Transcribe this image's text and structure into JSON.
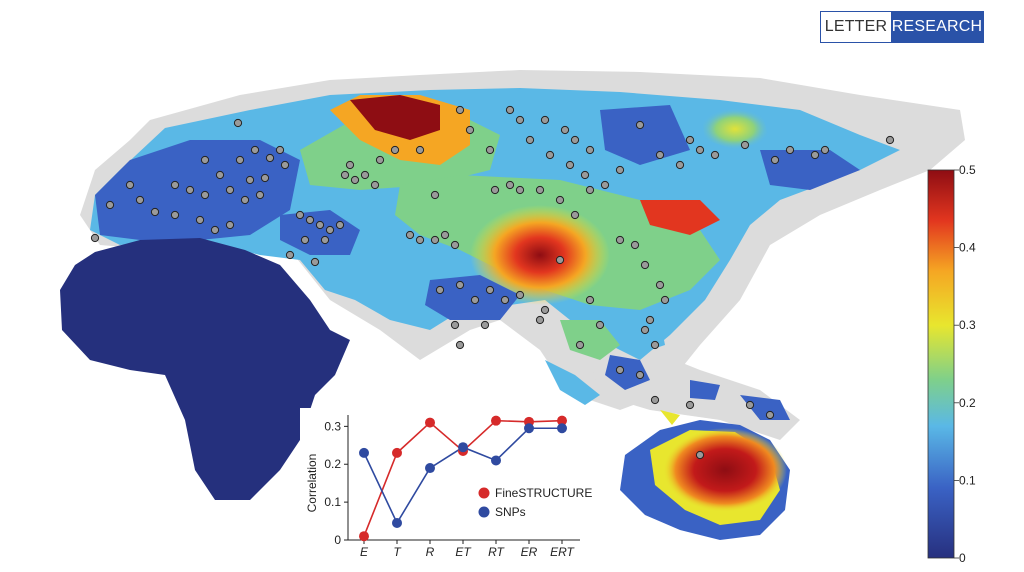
{
  "header": {
    "tag_left": "LETTER",
    "tag_right": "RESEARCH"
  },
  "colors": {
    "africa": "#25307d",
    "finestructure": "#d62a2a",
    "snps": "#2f4aa0",
    "scale_stops": [
      "#27307f",
      "#3a62c4",
      "#5ab8e6",
      "#7fd08a",
      "#e8e62e",
      "#f5a623",
      "#e2361f",
      "#8e0d13"
    ]
  },
  "colorbar": {
    "ticks": [
      "0.5",
      "0.4",
      "0.3",
      "0.2",
      "0.1",
      "0"
    ],
    "min": 0,
    "max": 0.5
  },
  "chart_data": {
    "type": "line",
    "categories": [
      "E",
      "T",
      "R",
      "ET",
      "RT",
      "ER",
      "ERT"
    ],
    "series": [
      {
        "name": "FineSTRUCTURE",
        "values": [
          0.01,
          0.23,
          0.31,
          0.235,
          0.315,
          0.312,
          0.315
        ]
      },
      {
        "name": "SNPs",
        "values": [
          0.23,
          0.045,
          0.19,
          0.245,
          0.21,
          0.295,
          0.295
        ]
      }
    ],
    "ylabel": "Correlation",
    "yticks": [
      "0",
      "0.1",
      "0.2",
      "0.3"
    ],
    "ylim": [
      0,
      0.33
    ],
    "legend": "right"
  }
}
